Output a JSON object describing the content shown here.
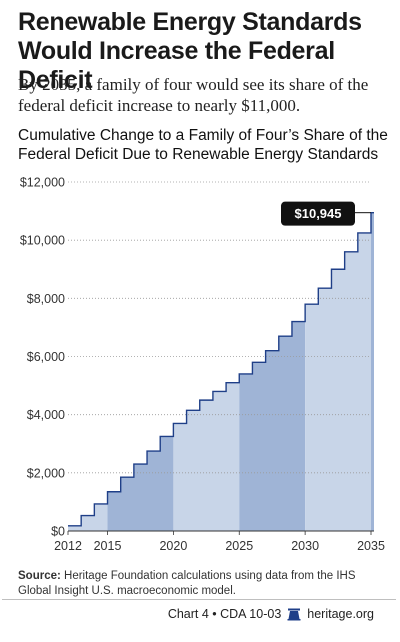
{
  "header": {
    "title": "Renewable Energy Standards Would Increase the Federal Deficit",
    "subtitle": "By 2035, a family of four would see its share of the federal deficit increase to nearly $11,000."
  },
  "chart_data": {
    "type": "area",
    "title": "Cumulative Change to a Family of Four’s Share of the Federal Deficit Due to Renewable Energy Standards",
    "xlabel": "",
    "ylabel": "",
    "x": [
      2012,
      2013,
      2014,
      2015,
      2016,
      2017,
      2018,
      2019,
      2020,
      2021,
      2022,
      2023,
      2024,
      2025,
      2026,
      2027,
      2028,
      2029,
      2030,
      2031,
      2032,
      2033,
      2034,
      2035
    ],
    "values": [
      180,
      530,
      930,
      1350,
      1850,
      2300,
      2750,
      3250,
      3700,
      4150,
      4500,
      4800,
      5100,
      5400,
      5800,
      6200,
      6700,
      7200,
      7800,
      8350,
      9000,
      9600,
      10250,
      10945
    ],
    "xlim": [
      2012,
      2035
    ],
    "ylim": [
      0,
      12000
    ],
    "y_ticks": [
      "$0",
      "$2,000",
      "$4,000",
      "$6,000",
      "$8,000",
      "$10,000",
      "$12,000"
    ],
    "x_ticks": [
      "2012",
      "2015",
      "2020",
      "2025",
      "2030",
      "2035"
    ],
    "callout": "$10,945",
    "grid": true,
    "colors": {
      "light": "#c8d5e8",
      "dark": "#9fb4d6",
      "line": "#1f3f88",
      "grid": "#9a9a9a",
      "callout_bg": "#111111"
    }
  },
  "source": {
    "label": "Source:",
    "text": "Heritage Foundation calculations using data from the IHS Global Insight U.S. macroeconomic model."
  },
  "footer": {
    "chart_id": "Chart 4 • CDA 10-03",
    "site": "heritage.org",
    "icon": "liberty-bell-icon"
  }
}
